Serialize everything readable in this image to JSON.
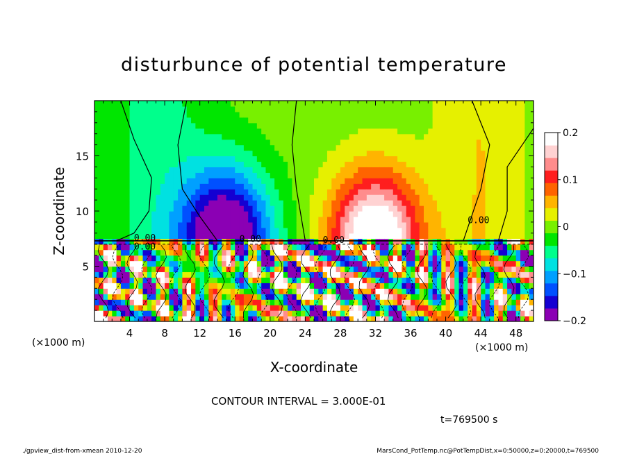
{
  "chart_data": {
    "type": "heatmap",
    "title": "disturbunce of potential temperature",
    "xlabel": "X-coordinate",
    "ylabel": "Z-coordinate",
    "x_unit_label": "(×1000 m)",
    "y_unit_label": "(×1000 m)",
    "xlim": [
      0,
      50
    ],
    "ylim": [
      0,
      20
    ],
    "x_ticks": [
      4,
      8,
      12,
      16,
      20,
      24,
      28,
      32,
      36,
      40,
      44,
      48
    ],
    "y_ticks": [
      5,
      10,
      15
    ],
    "colorbar": {
      "range": [
        -0.2,
        0.2
      ],
      "tick_labels": [
        "0.2",
        "0.1",
        "0",
        "−0.1",
        "−0.2"
      ],
      "tick_values": [
        0.2,
        0.1,
        0,
        -0.1,
        -0.2
      ]
    },
    "contour_interval_text": "CONTOUR INTERVAL = 3.000E-01",
    "contour_labels": [
      "0.00",
      "0.00",
      "0.00",
      "0.00",
      "0.00"
    ],
    "time_text": "t=769500 s",
    "features": {
      "cold_anomaly_center_x": 13,
      "warm_anomaly_center_x": 32,
      "min_value": -0.2,
      "max_value": 0.2,
      "turbulent_layer_top_z": 7.3
    }
  },
  "footer": {
    "left": "./gpview_dist-from-xmean  2010-12-20",
    "right": "MarsCond_PotTemp.nc@PotTempDist,x=0:50000,z=0:20000,t=769500"
  },
  "colors": {
    "cmap": [
      "#8b00b4",
      "#1400d2",
      "#0050ff",
      "#00a0ff",
      "#00e1e1",
      "#00ff8c",
      "#00e600",
      "#78f000",
      "#e6f000",
      "#ffb400",
      "#ff6400",
      "#ff1e1e",
      "#ff8c8c",
      "#ffd2d2",
      "#ffffff"
    ]
  }
}
